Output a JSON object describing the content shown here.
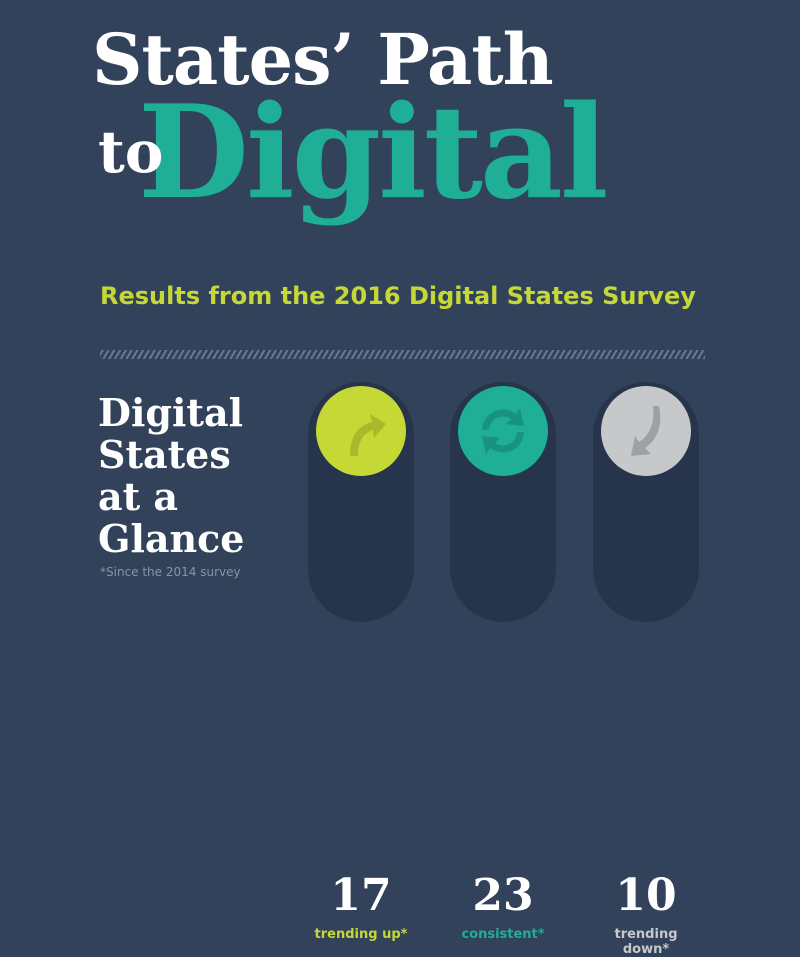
{
  "header": {
    "title_line1": "States’ Path",
    "title_to": "to",
    "title_digital": "Digital",
    "subtitle": "Results from the 2016 Digital States Survey"
  },
  "glance": {
    "heading_lines": [
      "Digital",
      "States",
      "at a",
      "Glance"
    ],
    "footnote": "*Since the 2014 survey"
  },
  "stats": [
    {
      "number": "17",
      "label": "trending up*"
    },
    {
      "number": "23",
      "label": "consistent*"
    },
    {
      "number": "10",
      "label": "trending down*"
    }
  ]
}
